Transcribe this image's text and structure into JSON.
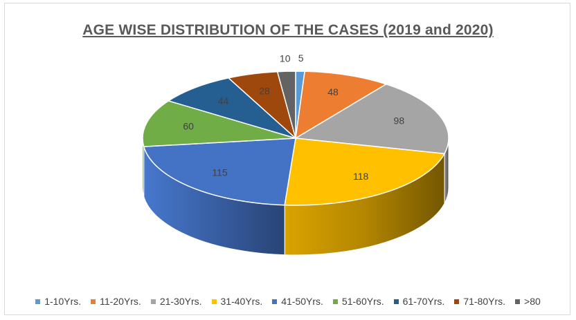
{
  "chart_data": {
    "type": "pie",
    "title": "AGE WISE DISTRIBUTION OF THE CASES (2019 and 2020)",
    "categories": [
      "1-10Yrs.",
      "11-20Yrs.",
      "21-30Yrs.",
      "31-40Yrs.",
      "41-50Yrs.",
      "51-60Yrs.",
      "61-70Yrs.",
      "71-80Yrs.",
      ">80"
    ],
    "values": [
      5,
      48,
      98,
      118,
      115,
      60,
      44,
      28,
      10
    ],
    "colors": [
      "#5b9bd5",
      "#ed7d31",
      "#a5a5a5",
      "#ffc000",
      "#4472c4",
      "#70ad47",
      "#255e91",
      "#9e480e",
      "#636363"
    ],
    "legend_position": "bottom",
    "style": "3d"
  }
}
